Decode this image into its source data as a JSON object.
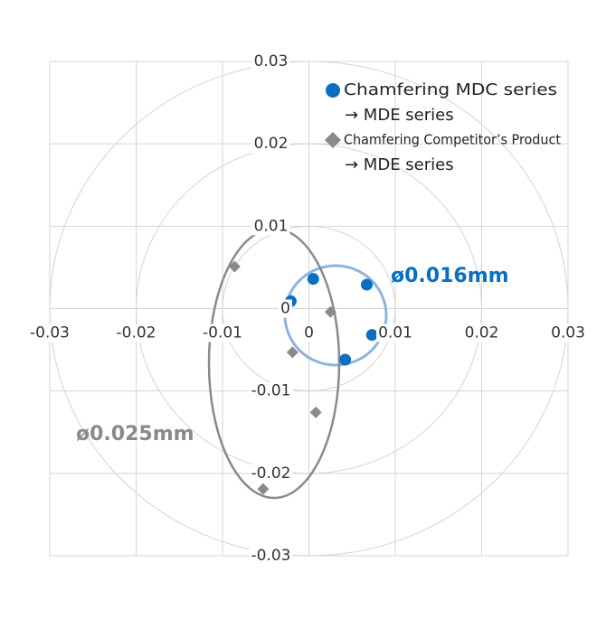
{
  "chart_data": {
    "type": "scatter",
    "xlim": [
      -0.03,
      0.03
    ],
    "ylim": [
      -0.03,
      0.03
    ],
    "xticks": [
      -0.03,
      -0.02,
      -0.01,
      0,
      0.01,
      0.02,
      0.03
    ],
    "yticks": [
      -0.03,
      -0.02,
      -0.01,
      0,
      0.01,
      0.02,
      0.03
    ],
    "grid": true,
    "series": [
      {
        "name": "Chamfering MDC series",
        "name_suffix": "→ MDE series",
        "color": "#0a6fc2",
        "marker": "circle",
        "x": [
          0.0005,
          -0.0021,
          0.0067,
          0.0073,
          0.0042
        ],
        "values": [
          0.0036,
          0.0009,
          0.0029,
          -0.0032,
          -0.0062
        ]
      },
      {
        "name": "Chamfering Competitor’s Product",
        "name_suffix": "→ MDE series",
        "color": "#8a8a8a",
        "marker": "diamond",
        "x": [
          -0.0086,
          0.0025,
          -0.0019,
          0.0008,
          -0.0053
        ],
        "values": [
          0.0051,
          -0.0004,
          -0.0053,
          -0.0126,
          -0.0219
        ]
      }
    ],
    "annotations": [
      {
        "text": "ø0.016mm",
        "color": "#0a6fc2"
      },
      {
        "text": "ø0.025mm",
        "color": "#8a8a8a"
      }
    ]
  }
}
